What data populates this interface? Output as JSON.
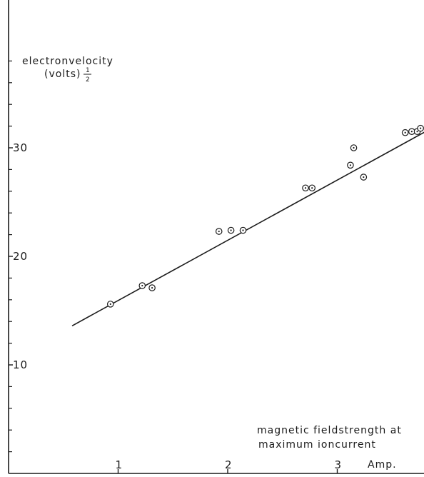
{
  "chart_data": {
    "type": "scatter",
    "title": "",
    "ylabel_line1": "electronvelocity",
    "ylabel_line2": "(volts)",
    "ylabel_exponent_num": "1",
    "ylabel_exponent_den": "2",
    "xlabel_line1": "magnetic fieldstrength at",
    "xlabel_line2": "maximum ioncurrent",
    "xunit": "Amp.",
    "xlim": [
      0,
      3.8
    ],
    "ylim": [
      0,
      42
    ],
    "x_ticks": [
      1,
      2,
      3
    ],
    "x_tick_labels": [
      "1",
      "2",
      "3"
    ],
    "y_ticks": [
      10,
      20,
      30
    ],
    "y_tick_labels": [
      "10",
      "20",
      "30"
    ],
    "y_minor_ticks": [
      2,
      4,
      6,
      8,
      12,
      14,
      16,
      18,
      22,
      24,
      26,
      28,
      32,
      34,
      36,
      38
    ],
    "grid": false,
    "points": [
      {
        "x": 0.93,
        "y": 15.6
      },
      {
        "x": 1.22,
        "y": 17.3
      },
      {
        "x": 1.31,
        "y": 17.1
      },
      {
        "x": 1.92,
        "y": 22.3
      },
      {
        "x": 2.03,
        "y": 22.4
      },
      {
        "x": 2.14,
        "y": 22.4
      },
      {
        "x": 2.71,
        "y": 26.3
      },
      {
        "x": 2.77,
        "y": 26.3
      },
      {
        "x": 3.12,
        "y": 28.4
      },
      {
        "x": 3.15,
        "y": 30.0
      },
      {
        "x": 3.24,
        "y": 27.3
      },
      {
        "x": 3.62,
        "y": 31.4
      },
      {
        "x": 3.68,
        "y": 31.5
      },
      {
        "x": 3.73,
        "y": 31.5
      },
      {
        "x": 3.76,
        "y": 31.8
      }
    ],
    "fit_line": [
      {
        "x": 0.58,
        "y": 13.6
      },
      {
        "x": 3.95,
        "y": 32.3
      }
    ]
  }
}
